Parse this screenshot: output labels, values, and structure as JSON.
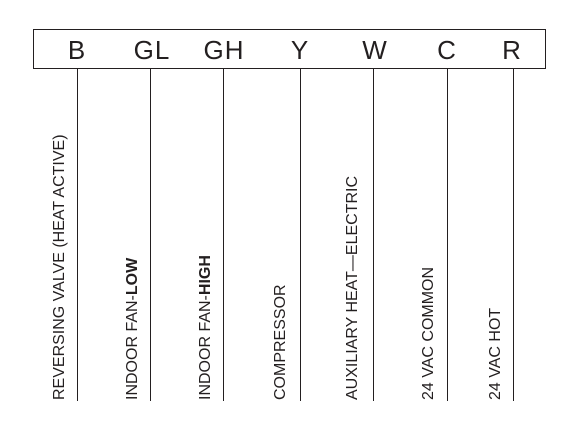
{
  "terminals": [
    {
      "code": "B",
      "function": "REVERSING VALVE (HEAT ACTIVE)",
      "bold": ""
    },
    {
      "code": "GL",
      "function": "INDOOR FAN-",
      "bold": "LOW"
    },
    {
      "code": "GH",
      "function": "INDOOR FAN-",
      "bold": "HIGH"
    },
    {
      "code": "Y",
      "function": "COMPRESSOR",
      "bold": ""
    },
    {
      "code": "W",
      "function": "AUXILIARY HEAT—ELECTRIC",
      "bold": ""
    },
    {
      "code": "C",
      "function": "24 VAC COMMON",
      "bold": ""
    },
    {
      "code": "R",
      "function": "24 VAC HOT",
      "bold": ""
    }
  ],
  "colors": {
    "line": "#231f20",
    "background": "#ffffff"
  }
}
